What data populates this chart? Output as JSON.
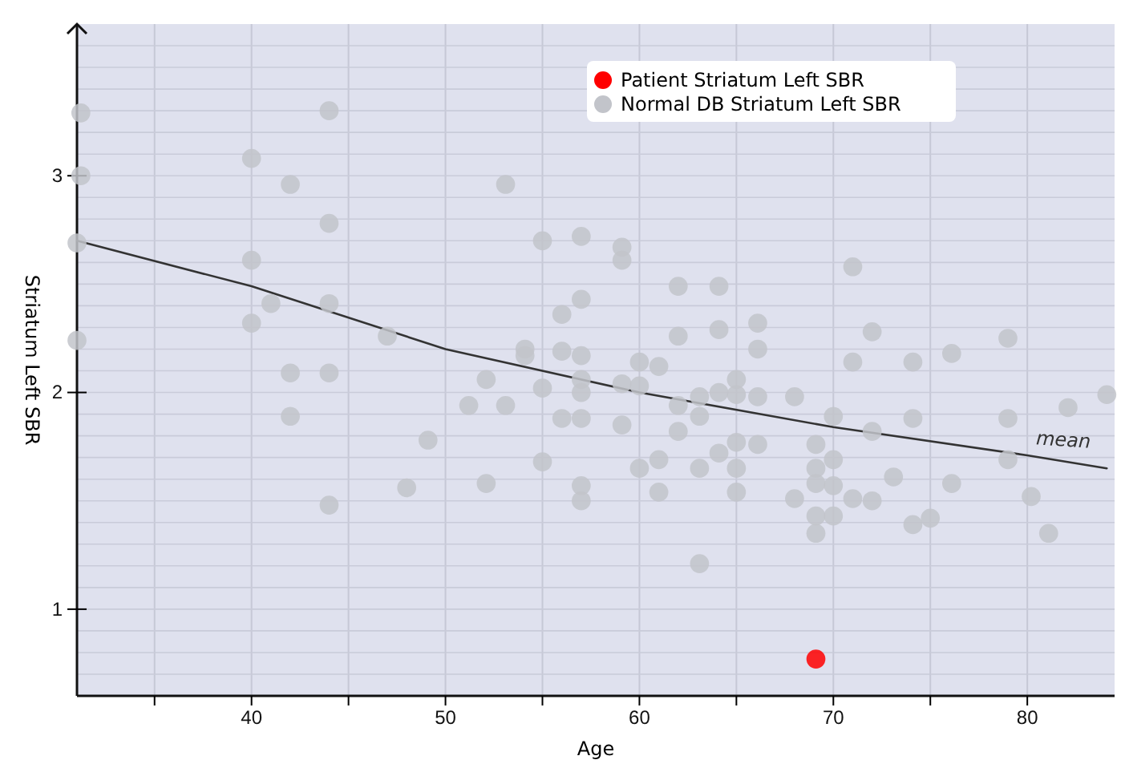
{
  "chart_data": {
    "type": "scatter",
    "xlabel": "Age",
    "ylabel": "Striatum Left SBR",
    "xlim": [
      31,
      84.5
    ],
    "ylim": [
      0.6,
      3.7
    ],
    "xticks": [
      {
        "value": 35,
        "label": null
      },
      40,
      {
        "value": 45,
        "label": null
      },
      50,
      {
        "value": 55,
        "label": null
      },
      60,
      {
        "value": 65,
        "label": null
      },
      70,
      {
        "value": 75,
        "label": null
      },
      80
    ],
    "yticks": [
      {
        "value": 0.7,
        "label": null
      },
      {
        "value": 0.8,
        "label": null
      },
      {
        "value": 0.9,
        "label": null
      },
      1,
      {
        "value": 1.1,
        "label": null
      },
      {
        "value": 1.2,
        "label": null
      },
      {
        "value": 1.3,
        "label": null
      },
      {
        "value": 1.4,
        "label": null
      },
      {
        "value": 1.5,
        "label": null
      },
      {
        "value": 1.6,
        "label": null
      },
      {
        "value": 1.7,
        "label": null
      },
      {
        "value": 1.8,
        "label": null
      },
      {
        "value": 1.9,
        "label": null
      },
      2,
      {
        "value": 2.1,
        "label": null
      },
      {
        "value": 2.2,
        "label": null
      },
      {
        "value": 2.3,
        "label": null
      },
      {
        "value": 2.4,
        "label": null
      },
      {
        "value": 2.5,
        "label": null
      },
      {
        "value": 2.6,
        "label": null
      },
      {
        "value": 2.7,
        "label": null
      },
      {
        "value": 2.8,
        "label": null
      },
      {
        "value": 2.9,
        "label": null
      },
      3,
      {
        "value": 3.1,
        "label": null
      },
      {
        "value": 3.2,
        "label": null
      },
      {
        "value": 3.3,
        "label": null
      },
      {
        "value": 3.4,
        "label": null
      },
      {
        "value": 3.5,
        "label": null
      },
      {
        "value": 3.6,
        "label": null
      }
    ],
    "grid": true,
    "legend": "top right",
    "marker": "circle",
    "series": [
      {
        "type": "line",
        "name": "mean",
        "marker": "none",
        "color": "#333333",
        "x": [
          31,
          40,
          50,
          60,
          70,
          80,
          84.1
        ],
        "values": [
          2.7,
          2.49,
          2.2,
          2.0,
          1.84,
          1.71,
          1.65
        ]
      },
      {
        "name": "Normal DB Striatum Left SBR",
        "color": "#c2c4ca",
        "x": [
          31.2,
          31.2,
          31,
          31,
          40,
          40,
          40,
          41,
          42,
          42,
          42,
          44,
          44,
          44,
          44,
          44,
          47,
          48,
          49.1,
          51.2,
          52.1,
          52.1,
          53.1,
          53.1,
          54.1,
          54.1,
          55,
          55,
          55,
          56,
          56,
          56,
          57,
          57,
          57,
          57,
          57,
          57,
          57,
          57,
          59.1,
          59.1,
          59.1,
          59.1,
          60,
          60,
          60,
          61,
          61,
          61,
          62,
          62,
          62,
          62,
          63.1,
          63.1,
          63.1,
          63.1,
          64.1,
          64.1,
          64.1,
          64.1,
          65,
          65,
          65,
          65,
          65,
          66.1,
          66.1,
          66.1,
          66.1,
          68,
          68,
          69.1,
          69.1,
          69.1,
          69.1,
          69.1,
          70,
          70,
          70,
          70,
          71,
          71,
          71,
          72,
          72,
          72,
          73.1,
          74.1,
          74.1,
          74.1,
          75,
          76.1,
          76.1,
          79,
          79,
          79,
          80.2,
          81.1,
          82.1,
          84.1
        ],
        "values": [
          3.29,
          3.0,
          2.69,
          2.24,
          3.08,
          2.61,
          2.32,
          2.41,
          2.96,
          2.09,
          1.89,
          3.3,
          2.78,
          2.41,
          2.09,
          1.48,
          2.26,
          1.56,
          1.78,
          1.94,
          2.06,
          1.58,
          2.96,
          1.94,
          2.2,
          2.17,
          2.7,
          2.02,
          1.68,
          2.36,
          2.19,
          1.88,
          2.72,
          2.43,
          2.17,
          2.06,
          2.0,
          1.88,
          1.57,
          1.5,
          2.67,
          2.61,
          2.04,
          1.85,
          2.14,
          2.03,
          1.65,
          2.12,
          1.69,
          1.54,
          2.49,
          2.26,
          1.94,
          1.82,
          1.98,
          1.89,
          1.65,
          1.21,
          2.49,
          2.29,
          2.0,
          1.72,
          2.06,
          1.99,
          1.77,
          1.65,
          1.54,
          2.32,
          2.2,
          1.98,
          1.76,
          1.98,
          1.51,
          1.76,
          1.65,
          1.58,
          1.43,
          1.35,
          1.89,
          1.69,
          1.57,
          1.43,
          2.58,
          2.14,
          1.51,
          2.28,
          1.82,
          1.5,
          1.61,
          2.14,
          1.88,
          1.39,
          1.42,
          2.18,
          1.58,
          2.25,
          1.88,
          1.69,
          1.52,
          1.35,
          1.93,
          1.99
        ]
      },
      {
        "name": "Patient Striatum Left SBR",
        "color": "#ff0000",
        "x": [
          69.1
        ],
        "values": [
          0.77
        ]
      }
    ]
  }
}
